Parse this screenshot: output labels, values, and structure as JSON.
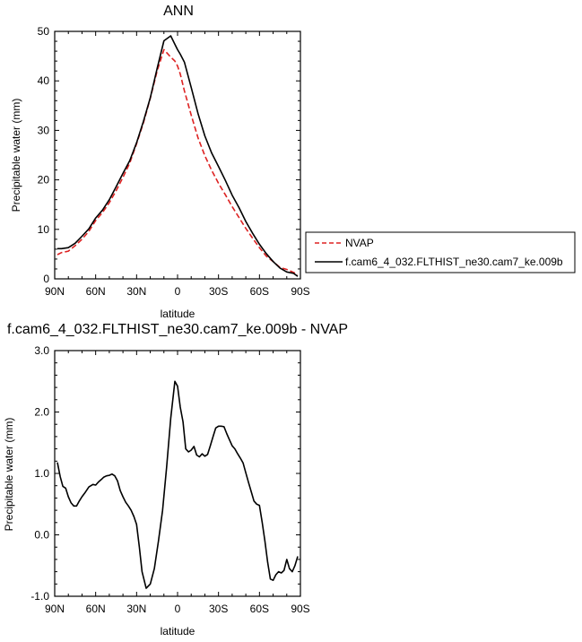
{
  "chart_data": [
    {
      "type": "line",
      "title": "ANN",
      "xlabel": "latitude",
      "ylabel": "Precipitable water (mm)",
      "xlim": [
        90,
        -90
      ],
      "ylim": [
        0,
        50
      ],
      "xticks": [
        90,
        60,
        30,
        0,
        -30,
        -60,
        -90
      ],
      "xtick_labels": [
        "90N",
        "60N",
        "30N",
        "0",
        "30S",
        "60S",
        "90S"
      ],
      "yticks": [
        0,
        10,
        20,
        30,
        40,
        50
      ],
      "ytick_labels": [
        "0",
        "10",
        "20",
        "30",
        "40",
        "50"
      ],
      "legend": "right",
      "series": [
        {
          "name": "NVAP",
          "color": "#dd2222",
          "dash": "dashed",
          "x": [
            88,
            85,
            80,
            75,
            70,
            65,
            60,
            55,
            50,
            45,
            40,
            35,
            30,
            25,
            20,
            15,
            10,
            5,
            2,
            0,
            -2,
            -5,
            -10,
            -15,
            -20,
            -25,
            -30,
            -35,
            -40,
            -45,
            -50,
            -55,
            -60,
            -65,
            -70,
            -75,
            -80,
            -85,
            -88
          ],
          "y": [
            4.9,
            5.3,
            5.6,
            6.7,
            8.0,
            9.6,
            11.8,
            13.4,
            15.4,
            17.8,
            20.5,
            23.4,
            27.3,
            31.5,
            36.5,
            42.0,
            46.3,
            44.8,
            44.0,
            43.0,
            41.4,
            38.0,
            33.1,
            28.5,
            24.9,
            21.9,
            19.3,
            17.0,
            14.6,
            12.4,
            10.2,
            8.2,
            6.3,
            4.6,
            3.5,
            2.3,
            1.9,
            1.3,
            0.9
          ]
        },
        {
          "name": "f.cam6_4_032.FLTHIST_ne30.cam7_ke.009b",
          "color": "#000000",
          "dash": "solid",
          "x": [
            88,
            85,
            80,
            75,
            70,
            65,
            60,
            55,
            50,
            45,
            40,
            35,
            30,
            25,
            20,
            15,
            10,
            5,
            2,
            0,
            -2,
            -5,
            -10,
            -15,
            -20,
            -25,
            -30,
            -35,
            -40,
            -45,
            -50,
            -55,
            -60,
            -65,
            -70,
            -75,
            -80,
            -85,
            -88
          ],
          "y": [
            6.1,
            6.1,
            6.3,
            7.2,
            8.6,
            10.1,
            12.3,
            13.9,
            16.0,
            18.6,
            21.3,
            23.9,
            27.5,
            31.8,
            36.6,
            42.5,
            48.1,
            49.1,
            47.4,
            46.3,
            45.4,
            43.8,
            38.7,
            33.4,
            28.9,
            25.4,
            22.7,
            19.9,
            16.9,
            14.4,
            11.6,
            9.2,
            7.0,
            5.1,
            3.5,
            2.2,
            1.4,
            1.1,
            0.5
          ]
        }
      ]
    },
    {
      "type": "line",
      "title": "f.cam6_4_032.FLTHIST_ne30.cam7_ke.009b - NVAP",
      "xlabel": "latitude",
      "ylabel": "Precipitable water (mm)",
      "xlim": [
        90,
        -90
      ],
      "ylim": [
        -1.0,
        3.0
      ],
      "xticks": [
        90,
        60,
        30,
        0,
        -30,
        -60,
        -90
      ],
      "xtick_labels": [
        "90N",
        "60N",
        "30N",
        "0",
        "30S",
        "60S",
        "90S"
      ],
      "yticks": [
        -1.0,
        0.0,
        1.0,
        2.0,
        3.0
      ],
      "ytick_labels": [
        "-1.0",
        "0.0",
        "1.0",
        "2.0",
        "3.0"
      ],
      "series": [
        {
          "color": "#000000",
          "dash": "solid",
          "x": [
            88,
            86,
            84,
            82,
            80,
            78,
            76,
            74,
            72,
            70,
            68,
            65,
            62,
            60,
            58,
            56,
            54,
            52,
            50,
            48,
            46,
            44,
            42,
            40,
            38,
            36,
            34,
            32,
            30,
            28,
            26,
            23,
            20,
            17,
            14,
            11,
            8,
            5,
            2,
            0,
            -2,
            -4,
            -6,
            -8,
            -10,
            -12,
            -14,
            -16,
            -18,
            -20,
            -22,
            -24,
            -26,
            -28,
            -30,
            -32,
            -34,
            -36,
            -38,
            -40,
            -42,
            -44,
            -46,
            -48,
            -50,
            -52,
            -54,
            -56,
            -58,
            -60,
            -62,
            -64,
            -66,
            -68,
            -70,
            -72,
            -74,
            -76,
            -78,
            -80,
            -82,
            -84,
            -86,
            -88
          ],
          "y": [
            1.18,
            0.95,
            0.79,
            0.76,
            0.62,
            0.52,
            0.47,
            0.47,
            0.55,
            0.62,
            0.68,
            0.78,
            0.82,
            0.81,
            0.86,
            0.9,
            0.94,
            0.96,
            0.97,
            0.99,
            0.96,
            0.88,
            0.72,
            0.62,
            0.53,
            0.47,
            0.4,
            0.3,
            0.17,
            -0.2,
            -0.6,
            -0.87,
            -0.8,
            -0.55,
            -0.1,
            0.4,
            1.1,
            1.9,
            2.5,
            2.42,
            2.08,
            1.84,
            1.4,
            1.35,
            1.38,
            1.44,
            1.3,
            1.27,
            1.32,
            1.28,
            1.31,
            1.45,
            1.6,
            1.74,
            1.77,
            1.77,
            1.76,
            1.65,
            1.55,
            1.45,
            1.4,
            1.32,
            1.25,
            1.17,
            1.01,
            0.85,
            0.7,
            0.55,
            0.5,
            0.48,
            0.2,
            -0.1,
            -0.45,
            -0.72,
            -0.74,
            -0.65,
            -0.6,
            -0.62,
            -0.58,
            -0.4,
            -0.55,
            -0.6,
            -0.5,
            -0.35
          ]
        }
      ]
    }
  ]
}
